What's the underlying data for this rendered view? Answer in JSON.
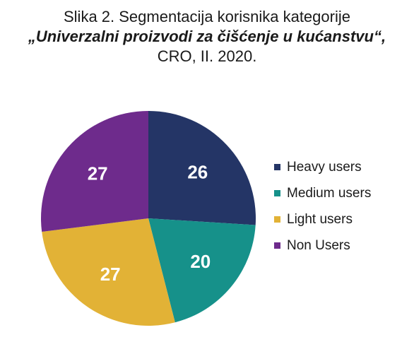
{
  "title": {
    "line1": "Slika 2. Segmentacija korisnika kategorije",
    "line2": "„Univerzalni proizvodi za čišćenje u kućanstvu“,",
    "line3": "CRO, II. 2020."
  },
  "chart_data": {
    "type": "pie",
    "title": "Slika 2. Segmentacija korisnika kategorije „Univerzalni proizvodi za čišćenje u kućanstvu“, CRO, II. 2020.",
    "categories": [
      "Heavy users",
      "Medium users",
      "Light users",
      "Non Users"
    ],
    "values": [
      26,
      20,
      27,
      27
    ],
    "labels": [
      "26",
      "20",
      "27",
      "27"
    ],
    "colors": [
      "#243566",
      "#16918a",
      "#e2b236",
      "#6e2b8c"
    ],
    "legend_position": "right"
  }
}
